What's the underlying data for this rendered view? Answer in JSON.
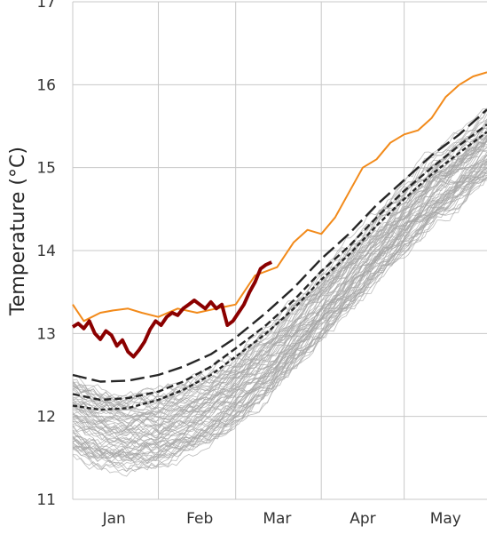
{
  "chart_data": {
    "type": "line",
    "title": "",
    "xlabel": "",
    "ylabel": "Temperature (°C)",
    "xlim_day_of_year": [
      0,
      150
    ],
    "ylim": [
      11,
      17
    ],
    "yticks": [
      11,
      12,
      13,
      14,
      15,
      16,
      17
    ],
    "xticks": [
      {
        "label": "Jan",
        "day": 15
      },
      {
        "label": "Feb",
        "day": 46
      },
      {
        "label": "Mar",
        "day": 74
      },
      {
        "label": "Apr",
        "day": 105
      },
      {
        "label": "May",
        "day": 135
      }
    ],
    "x_gridlines_day": [
      0,
      31,
      59,
      90,
      120
    ],
    "grid": true,
    "legend": "none",
    "colors": {
      "ensemble": "#a6a6a6",
      "record_max": "#f28a1a",
      "current_year": "#8b0000",
      "percentiles": "#262626",
      "grid": "#c8c8c8"
    },
    "series": [
      {
        "style": "orange-solid",
        "x": [
          0,
          4,
          10,
          15,
          20,
          25,
          31,
          38,
          45,
          52,
          59,
          66,
          74,
          80,
          85,
          90,
          95,
          100,
          105,
          110,
          115,
          120,
          125,
          130,
          135,
          140,
          145,
          150
        ],
        "y": [
          13.35,
          13.15,
          13.25,
          13.28,
          13.3,
          13.25,
          13.2,
          13.3,
          13.25,
          13.3,
          13.35,
          13.7,
          13.8,
          14.1,
          14.25,
          14.2,
          14.4,
          14.7,
          15.0,
          15.1,
          15.3,
          15.4,
          15.45,
          15.6,
          15.85,
          16.0,
          16.1,
          16.15
        ]
      },
      {
        "style": "darkred-thick",
        "x": [
          0,
          2,
          4,
          6,
          8,
          10,
          12,
          14,
          16,
          18,
          20,
          22,
          24,
          26,
          28,
          30,
          32,
          34,
          36,
          38,
          40,
          42,
          44,
          46,
          48,
          50,
          52,
          54,
          56,
          58,
          60,
          62,
          64,
          66,
          68,
          70,
          72
        ],
        "y": [
          13.08,
          13.12,
          13.06,
          13.15,
          13.0,
          12.93,
          13.03,
          12.98,
          12.85,
          12.92,
          12.78,
          12.72,
          12.8,
          12.9,
          13.05,
          13.15,
          13.1,
          13.2,
          13.25,
          13.22,
          13.3,
          13.35,
          13.4,
          13.35,
          13.3,
          13.38,
          13.3,
          13.35,
          13.1,
          13.15,
          13.25,
          13.35,
          13.5,
          13.62,
          13.78,
          13.83,
          13.86
        ]
      },
      {
        "style": "dashed-long",
        "x": [
          0,
          10,
          20,
          31,
          40,
          50,
          59,
          70,
          80,
          90,
          100,
          110,
          120,
          130,
          140,
          150
        ],
        "y": [
          12.5,
          12.42,
          12.43,
          12.5,
          12.6,
          12.75,
          12.95,
          13.25,
          13.55,
          13.9,
          14.2,
          14.55,
          14.85,
          15.15,
          15.4,
          15.7
        ]
      },
      {
        "style": "dashed-medium",
        "x": [
          0,
          10,
          20,
          31,
          40,
          50,
          59,
          70,
          80,
          90,
          100,
          110,
          120,
          130,
          140,
          150
        ],
        "y": [
          12.27,
          12.2,
          12.22,
          12.3,
          12.42,
          12.6,
          12.82,
          13.1,
          13.4,
          13.75,
          14.05,
          14.4,
          14.72,
          15.0,
          15.27,
          15.52
        ]
      },
      {
        "style": "dashed-short",
        "x": [
          0,
          10,
          20,
          31,
          40,
          50,
          59,
          70,
          80,
          90,
          100,
          110,
          120,
          130,
          140,
          150
        ],
        "y": [
          12.13,
          12.08,
          12.1,
          12.2,
          12.32,
          12.5,
          12.72,
          13.0,
          13.3,
          13.65,
          13.95,
          14.3,
          14.62,
          14.92,
          15.18,
          15.43
        ]
      }
    ],
    "ensemble_mean": {
      "x": [
        0,
        10,
        20,
        31,
        40,
        50,
        59,
        70,
        80,
        90,
        100,
        110,
        120,
        130,
        140,
        150
      ],
      "y": [
        12.0,
        11.85,
        11.8,
        11.85,
        11.95,
        12.1,
        12.3,
        12.6,
        12.95,
        13.3,
        13.65,
        14.0,
        14.35,
        14.7,
        14.95,
        15.25
      ]
    },
    "ensemble_spread": 0.45,
    "ensemble_count": 70
  }
}
